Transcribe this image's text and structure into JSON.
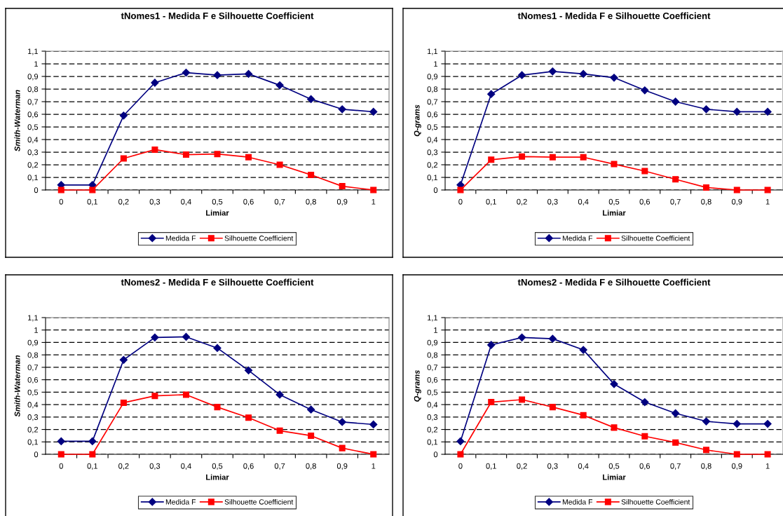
{
  "chart_data": [
    {
      "type": "line",
      "title": "tNomes1 - Medida F e Silhouette Coefficient",
      "xlabel": "Limiar",
      "ylabel": "Smith-Waterman",
      "categories": [
        "0",
        "0,1",
        "0,2",
        "0,3",
        "0,4",
        "0,5",
        "0,6",
        "0,7",
        "0,8",
        "0,9",
        "1"
      ],
      "series": [
        {
          "name": "Medida F",
          "color": "#000080",
          "marker": "diamond",
          "values": [
            0.04,
            0.04,
            0.59,
            0.85,
            0.93,
            0.91,
            0.92,
            0.83,
            0.72,
            0.64,
            0.62
          ]
        },
        {
          "name": "Silhouette Coefficient",
          "color": "#ff0000",
          "marker": "square",
          "values": [
            0,
            0,
            0.25,
            0.32,
            0.28,
            0.285,
            0.26,
            0.2,
            0.12,
            0.03,
            0
          ]
        }
      ],
      "ylim": [
        0,
        1.1
      ],
      "yticks": [
        0,
        {
          "value": 0.1,
          "label": "0,1"
        },
        {
          "value": 0.2,
          "label": "0,2"
        },
        {
          "value": 0.3,
          "label": "0,3"
        },
        {
          "value": 0.4,
          "label": "0,4"
        },
        {
          "value": 0.5,
          "label": "0,5"
        },
        {
          "value": 0.6,
          "label": "0,6"
        },
        {
          "value": 0.7,
          "label": "0,7"
        },
        {
          "value": 0.8,
          "label": "0,8"
        },
        {
          "value": 0.9,
          "label": "0,9"
        },
        1,
        {
          "value": 1.1,
          "label": "1,1"
        }
      ],
      "grid": "y",
      "legend": "bottom",
      "line_style": "solid"
    },
    {
      "type": "line",
      "title": "tNomes1 - Medida F e Silhouette Coefficient",
      "xlabel": "Limiar",
      "ylabel": "Q-grams",
      "categories": [
        "0",
        "0,1",
        "0,2",
        "0,3",
        "0,4",
        "0,5",
        "0,6",
        "0,7",
        "0,8",
        "0,9",
        "1"
      ],
      "series": [
        {
          "name": "Medida F",
          "color": "#000080",
          "marker": "diamond",
          "values": [
            0.04,
            0.76,
            0.91,
            0.94,
            0.92,
            0.89,
            0.79,
            0.7,
            0.64,
            0.62,
            0.62
          ]
        },
        {
          "name": "Silhouette Coefficient",
          "color": "#ff0000",
          "marker": "square",
          "values": [
            0,
            0.24,
            0.265,
            0.26,
            0.26,
            0.205,
            0.15,
            0.085,
            0.02,
            0,
            0
          ]
        }
      ],
      "ylim": [
        0,
        1.1
      ],
      "yticks": [
        0,
        {
          "value": 0.1,
          "label": "0,1"
        },
        {
          "value": 0.2,
          "label": "0,2"
        },
        {
          "value": 0.3,
          "label": "0,3"
        },
        {
          "value": 0.4,
          "label": "0,4"
        },
        {
          "value": 0.5,
          "label": "0,5"
        },
        {
          "value": 0.6,
          "label": "0,6"
        },
        {
          "value": 0.7,
          "label": "0,7"
        },
        {
          "value": 0.8,
          "label": "0,8"
        },
        {
          "value": 0.9,
          "label": "0,9"
        },
        1,
        {
          "value": 1.1,
          "label": "1,1"
        }
      ],
      "grid": "y",
      "legend": "bottom",
      "line_style": "solid"
    },
    {
      "type": "line",
      "title": "tNomes2 - Medida F e Silhouette Coefficient",
      "xlabel": "Limiar",
      "ylabel": "Smith-Waterman",
      "categories": [
        "0",
        "0,1",
        "0,2",
        "0,3",
        "0,4",
        "0,5",
        "0,6",
        "0,7",
        "0,8",
        "0,9",
        "1"
      ],
      "series": [
        {
          "name": "Medida F",
          "color": "#000080",
          "marker": "diamond",
          "values": [
            0.105,
            0.105,
            0.76,
            0.94,
            0.945,
            0.855,
            0.675,
            0.48,
            0.36,
            0.26,
            0.24
          ]
        },
        {
          "name": "Silhouette Coefficient",
          "color": "#ff0000",
          "marker": "square",
          "values": [
            0,
            0,
            0.415,
            0.47,
            0.48,
            0.38,
            0.295,
            0.19,
            0.15,
            0.05,
            0
          ]
        }
      ],
      "ylim": [
        0,
        1.1
      ],
      "yticks": [
        0,
        {
          "value": 0.1,
          "label": "0,1"
        },
        {
          "value": 0.2,
          "label": "0,2"
        },
        {
          "value": 0.3,
          "label": "0,3"
        },
        {
          "value": 0.4,
          "label": "0,4"
        },
        {
          "value": 0.5,
          "label": "0,5"
        },
        {
          "value": 0.6,
          "label": "0,6"
        },
        {
          "value": 0.7,
          "label": "0,7"
        },
        {
          "value": 0.8,
          "label": "0,8"
        },
        {
          "value": 0.9,
          "label": "0,9"
        },
        1,
        {
          "value": 1.1,
          "label": "1,1"
        }
      ],
      "grid": "y",
      "legend": "bottom",
      "line_style": "solid"
    },
    {
      "type": "line",
      "title": "tNomes2 - Medida F e Silhouette Coefficient",
      "xlabel": "Limiar",
      "ylabel": "Q-grams",
      "categories": [
        "0",
        "0,1",
        "0,2",
        "0,3",
        "0,4",
        "0,5",
        "0,6",
        "0,7",
        "0,8",
        "0,9",
        "1"
      ],
      "series": [
        {
          "name": "Medida F",
          "color": "#000080",
          "marker": "diamond",
          "values": [
            0.105,
            0.88,
            0.94,
            0.93,
            0.84,
            0.565,
            0.42,
            0.33,
            0.265,
            0.245,
            0.245
          ]
        },
        {
          "name": "Silhouette Coefficient",
          "color": "#ff0000",
          "marker": "square",
          "values": [
            0,
            0.42,
            0.44,
            0.38,
            0.315,
            0.215,
            0.145,
            0.095,
            0.035,
            0,
            0
          ]
        }
      ],
      "ylim": [
        0,
        1.1
      ],
      "yticks": [
        0,
        {
          "value": 0.1,
          "label": "0,1"
        },
        {
          "value": 0.2,
          "label": "0,2"
        },
        {
          "value": 0.3,
          "label": "0,3"
        },
        {
          "value": 0.4,
          "label": "0,4"
        },
        {
          "value": 0.5,
          "label": "0,5"
        },
        {
          "value": 0.6,
          "label": "0,6"
        },
        {
          "value": 0.7,
          "label": "0,7"
        },
        {
          "value": 0.8,
          "label": "0,8"
        },
        {
          "value": 0.9,
          "label": "0,9"
        },
        1,
        {
          "value": 1.1,
          "label": "1,1"
        }
      ],
      "grid": "y",
      "legend": "bottom",
      "line_style": "solid"
    }
  ]
}
